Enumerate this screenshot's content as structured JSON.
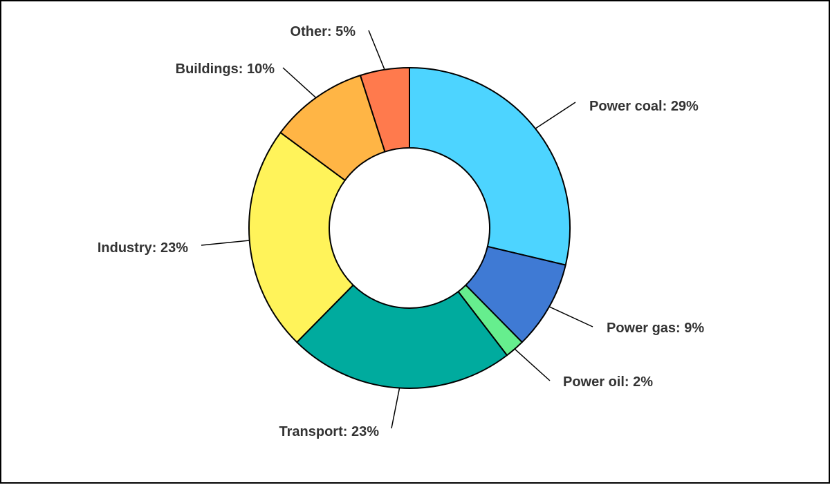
{
  "chart_data": {
    "type": "pie",
    "variant": "donut",
    "title": "",
    "legend": "none",
    "slices": [
      {
        "label": "Power coal",
        "value": 29,
        "display": "Power coal: 29%",
        "color": "#4DD4FF"
      },
      {
        "label": "Power gas",
        "value": 9,
        "display": "Power gas: 9%",
        "color": "#3F7AD4"
      },
      {
        "label": "Power oil",
        "value": 2,
        "display": "Power oil: 2%",
        "color": "#66EE8E"
      },
      {
        "label": "Transport",
        "value": 23,
        "display": "Transport: 23%",
        "color": "#00AB9E"
      },
      {
        "label": "Industry",
        "value": 23,
        "display": "Industry: 23%",
        "color": "#FFF35A"
      },
      {
        "label": "Buildings",
        "value": 10,
        "display": "Buildings: 10%",
        "color": "#FFB545"
      },
      {
        "label": "Other",
        "value": 5,
        "display": "Other: 5%",
        "color": "#FF7A4D"
      }
    ]
  }
}
